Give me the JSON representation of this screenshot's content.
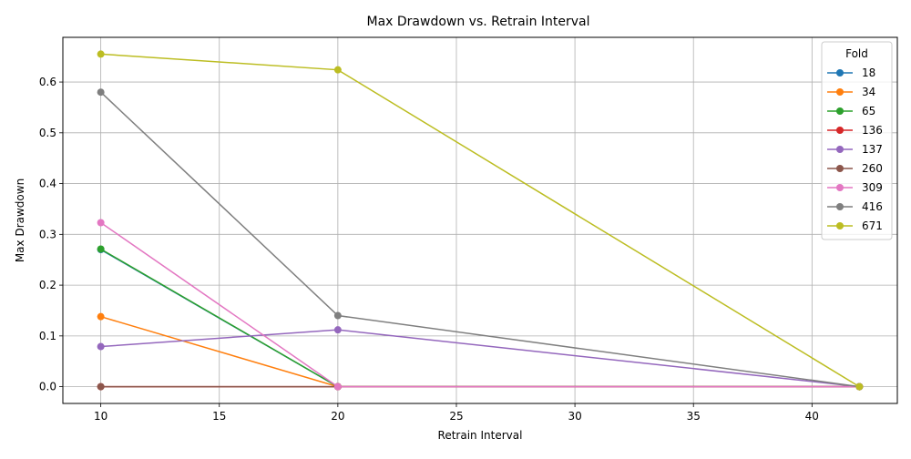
{
  "chart_data": {
    "type": "line",
    "title": "Max Drawdown vs. Retrain Interval",
    "xlabel": "Retrain Interval",
    "ylabel": "Max Drawdown",
    "xlim": [
      8.4,
      43.6
    ],
    "ylim": [
      -0.033,
      0.688
    ],
    "xticks": [
      10,
      15,
      20,
      25,
      30,
      35,
      40
    ],
    "yticks": [
      0.0,
      0.1,
      0.2,
      0.3,
      0.4,
      0.5,
      0.6
    ],
    "grid": true,
    "legend": {
      "title": "Fold",
      "placement": "top-right"
    },
    "x": [
      10,
      20,
      42
    ],
    "series": [
      {
        "name": "18",
        "color": "#1f77b4",
        "values": [
          0.27,
          0.0,
          0.0
        ]
      },
      {
        "name": "34",
        "color": "#ff7f0e",
        "values": [
          0.138,
          0.0,
          0.0
        ]
      },
      {
        "name": "65",
        "color": "#2ca02c",
        "values": [
          0.271,
          0.0,
          0.0
        ]
      },
      {
        "name": "136",
        "color": "#d62728",
        "values": [
          0.0,
          0.0,
          0.0
        ]
      },
      {
        "name": "137",
        "color": "#9467bd",
        "values": [
          0.079,
          0.112,
          0.0
        ]
      },
      {
        "name": "260",
        "color": "#8c564b",
        "values": [
          0.0,
          0.0,
          0.0
        ]
      },
      {
        "name": "309",
        "color": "#e377c2",
        "values": [
          0.323,
          0.0,
          0.0
        ]
      },
      {
        "name": "416",
        "color": "#7f7f7f",
        "values": [
          0.58,
          0.14,
          0.0
        ]
      },
      {
        "name": "671",
        "color": "#bcbd22",
        "values": [
          0.655,
          0.624,
          0.0
        ]
      }
    ]
  }
}
